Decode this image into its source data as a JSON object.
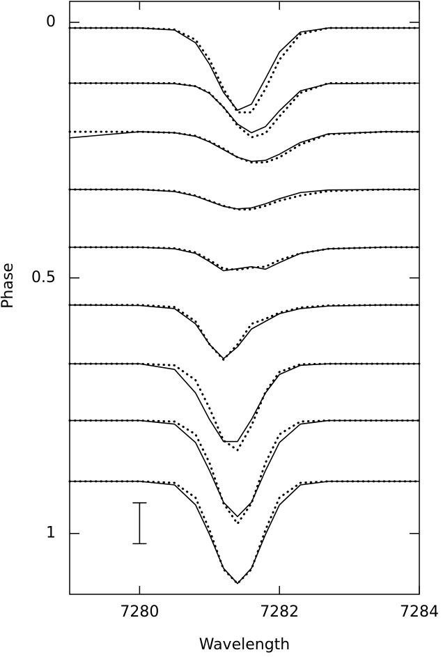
{
  "chart_data": {
    "type": "line",
    "x_label": "Wavelength",
    "y_label": "Phase",
    "xlim": [
      7279,
      7284
    ],
    "xticks": [
      7280,
      7282,
      7284
    ],
    "ylim": [
      -0.041,
      1.119
    ],
    "yticks": [
      0,
      0.5,
      1
    ],
    "y_inverted": true,
    "x": [
      7279,
      7280,
      7280.5,
      7280.8,
      7281,
      7281.2,
      7281.4,
      7281.6,
      7281.8,
      7282,
      7282.3,
      7282.7,
      7283.5,
      7284
    ],
    "series": [
      {
        "style": "solid",
        "color": "#000000",
        "values": [
          0.011,
          0.011,
          0.015,
          0.04,
          0.082,
          0.137,
          0.172,
          0.16,
          0.11,
          0.058,
          0.019,
          0.011,
          0.011,
          0.011
        ]
      },
      {
        "style": "dotted",
        "color": "#000000",
        "values": [
          0.011,
          0.011,
          0.014,
          0.034,
          0.073,
          0.13,
          0.176,
          0.176,
          0.13,
          0.073,
          0.023,
          0.011,
          0.011,
          0.011
        ]
      },
      {
        "style": "solid",
        "color": "#000000",
        "values": [
          0.119,
          0.119,
          0.12,
          0.125,
          0.139,
          0.166,
          0.199,
          0.216,
          0.204,
          0.173,
          0.134,
          0.12,
          0.119,
          0.119
        ]
      },
      {
        "style": "dotted",
        "color": "#000000",
        "values": [
          0.119,
          0.119,
          0.119,
          0.125,
          0.138,
          0.166,
          0.202,
          0.225,
          0.217,
          0.184,
          0.138,
          0.119,
          0.119,
          0.119
        ]
      },
      {
        "style": "solid",
        "color": "#000000",
        "values": [
          0.226,
          0.214,
          0.216,
          0.223,
          0.234,
          0.249,
          0.264,
          0.272,
          0.27,
          0.258,
          0.235,
          0.218,
          0.214,
          0.214
        ]
      },
      {
        "style": "dotted",
        "color": "#000000",
        "values": [
          0.214,
          0.214,
          0.216,
          0.222,
          0.233,
          0.247,
          0.264,
          0.274,
          0.274,
          0.264,
          0.239,
          0.219,
          0.214,
          0.214
        ]
      },
      {
        "style": "solid",
        "color": "#000000",
        "values": [
          0.327,
          0.327,
          0.331,
          0.34,
          0.35,
          0.36,
          0.365,
          0.363,
          0.355,
          0.345,
          0.333,
          0.328,
          0.327,
          0.327
        ]
      },
      {
        "style": "dotted",
        "color": "#000000",
        "values": [
          0.327,
          0.327,
          0.33,
          0.339,
          0.349,
          0.359,
          0.366,
          0.366,
          0.359,
          0.349,
          0.339,
          0.33,
          0.327,
          0.327
        ]
      },
      {
        "style": "solid",
        "color": "#000000",
        "values": [
          0.44,
          0.44,
          0.443,
          0.452,
          0.468,
          0.486,
          0.482,
          0.478,
          0.483,
          0.47,
          0.452,
          0.443,
          0.44,
          0.44
        ]
      },
      {
        "style": "dotted",
        "color": "#000000",
        "values": [
          0.44,
          0.44,
          0.442,
          0.45,
          0.465,
          0.482,
          0.484,
          0.48,
          0.478,
          0.465,
          0.452,
          0.443,
          0.44,
          0.44
        ]
      },
      {
        "style": "solid",
        "color": "#000000",
        "values": [
          0.553,
          0.554,
          0.56,
          0.59,
          0.63,
          0.658,
          0.635,
          0.6,
          0.585,
          0.57,
          0.56,
          0.555,
          0.553,
          0.553
        ]
      },
      {
        "style": "dotted",
        "color": "#000000",
        "values": [
          0.553,
          0.553,
          0.557,
          0.585,
          0.63,
          0.66,
          0.63,
          0.59,
          0.58,
          0.568,
          0.558,
          0.554,
          0.553,
          0.553
        ]
      },
      {
        "style": "solid",
        "color": "#000000",
        "values": [
          0.668,
          0.668,
          0.679,
          0.725,
          0.777,
          0.82,
          0.82,
          0.777,
          0.725,
          0.689,
          0.671,
          0.668,
          0.668,
          0.668
        ]
      },
      {
        "style": "dotted",
        "color": "#000000",
        "values": [
          0.668,
          0.668,
          0.671,
          0.7,
          0.755,
          0.818,
          0.837,
          0.789,
          0.723,
          0.684,
          0.669,
          0.668,
          0.668,
          0.668
        ]
      },
      {
        "style": "solid",
        "color": "#000000",
        "values": [
          0.779,
          0.779,
          0.786,
          0.822,
          0.877,
          0.939,
          0.967,
          0.939,
          0.877,
          0.822,
          0.786,
          0.779,
          0.779,
          0.779
        ]
      },
      {
        "style": "dotted",
        "color": "#000000",
        "values": [
          0.779,
          0.779,
          0.781,
          0.806,
          0.862,
          0.941,
          0.981,
          0.941,
          0.862,
          0.806,
          0.781,
          0.779,
          0.779,
          0.779
        ]
      },
      {
        "style": "solid",
        "color": "#000000",
        "values": [
          0.898,
          0.898,
          0.905,
          0.944,
          1.002,
          1.068,
          1.098,
          1.068,
          1.002,
          0.944,
          0.905,
          0.898,
          0.898,
          0.898
        ]
      },
      {
        "style": "dotted",
        "color": "#000000",
        "values": [
          0.898,
          0.898,
          0.901,
          0.93,
          0.993,
          1.07,
          1.098,
          1.07,
          0.993,
          0.93,
          0.901,
          0.898,
          0.898,
          0.898
        ]
      }
    ],
    "error_bar": {
      "x": 7280,
      "y": 0.98,
      "error": 0.04
    }
  }
}
